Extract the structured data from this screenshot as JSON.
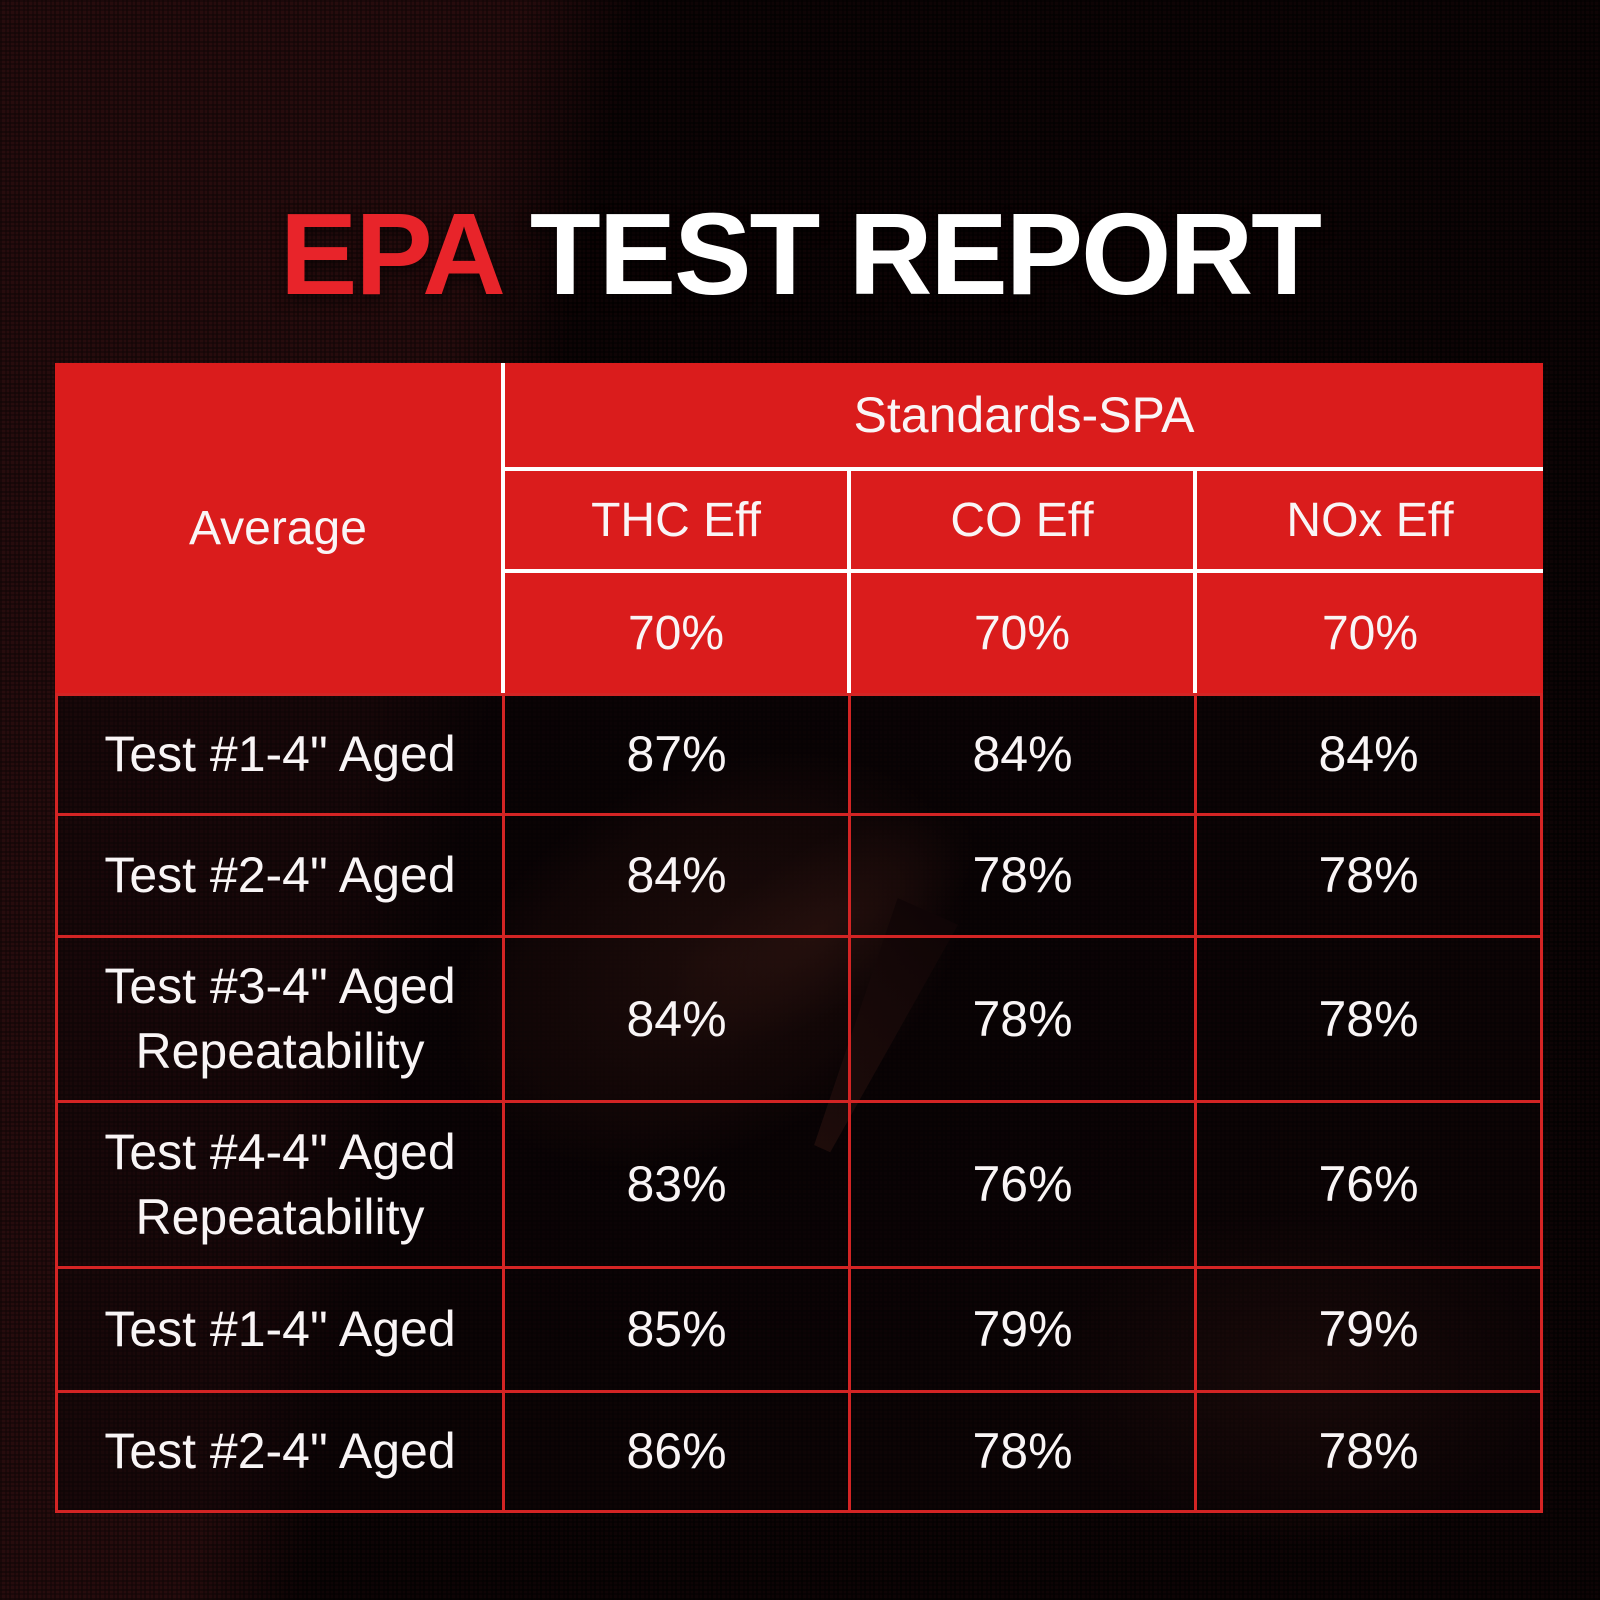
{
  "title": {
    "highlight": "EPA",
    "rest": "TEST REPORT"
  },
  "table": {
    "corner_header": "Average",
    "group_header": "Standards-SPA",
    "columns": [
      "THC Eff",
      "CO Eff",
      "NOx Eff"
    ],
    "standards": [
      "70%",
      "70%",
      "70%"
    ],
    "rows": [
      {
        "label": "Test #1-4\" Aged",
        "values": [
          "87%",
          "84%",
          "84%"
        ]
      },
      {
        "label": "Test #2-4\" Aged",
        "values": [
          "84%",
          "78%",
          "78%"
        ]
      },
      {
        "label": "Test #3-4\" Aged Repeatability",
        "values": [
          "84%",
          "78%",
          "78%"
        ]
      },
      {
        "label": "Test #4-4\" Aged Repeatability",
        "values": [
          "83%",
          "76%",
          "76%"
        ]
      },
      {
        "label": "Test #1-4\" Aged",
        "values": [
          "85%",
          "79%",
          "79%"
        ]
      },
      {
        "label": "Test #2-4\" Aged",
        "values": [
          "86%",
          "78%",
          "78%"
        ]
      }
    ]
  },
  "colors": {
    "header_red": "#da1c1c",
    "title_red": "#e8242a",
    "grid_red": "#d32424",
    "text_white": "#ffffff",
    "background_dark": "#260a0d"
  }
}
